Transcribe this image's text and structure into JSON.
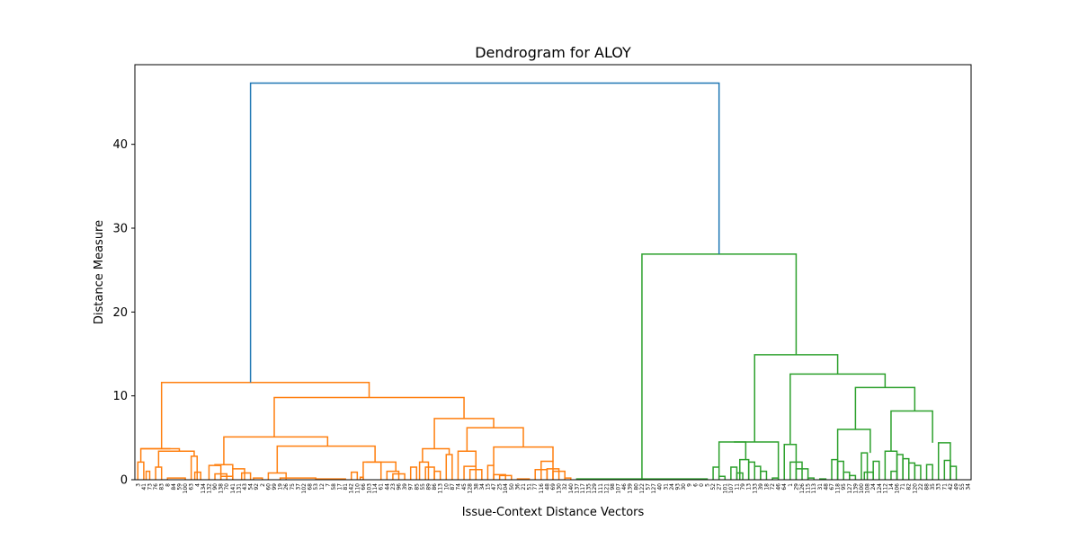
{
  "chart_data": {
    "type": "dendrogram",
    "title": "Dendrogram for ALOY",
    "xlabel": "Issue-Context Distance Vectors",
    "ylabel": "Distance Measure",
    "ylim": [
      0,
      49.5
    ],
    "yticks": [
      0,
      10,
      20,
      30,
      40
    ],
    "grid": false,
    "link_colors": {
      "root": "#1f77b4",
      "cluster_orange": "#ff7f0e",
      "cluster_green": "#2ca02c"
    },
    "leaf_labels": [
      "3",
      "41",
      "73",
      "76",
      "83",
      "8",
      "84",
      "59",
      "100",
      "63",
      "4",
      "134",
      "132",
      "90",
      "138",
      "70",
      "141",
      "131",
      "43",
      "54",
      "92",
      "2",
      "60",
      "99",
      "19",
      "26",
      "75",
      "37",
      "102",
      "68",
      "53",
      "12",
      "7",
      "58",
      "17",
      "81",
      "142",
      "110",
      "66",
      "103",
      "114",
      "61",
      "44",
      "23",
      "96",
      "39",
      "97",
      "85",
      "55",
      "89",
      "86",
      "113",
      "10",
      "87",
      "74",
      "45",
      "128",
      "38",
      "34",
      "15",
      "47",
      "25",
      "104",
      "50",
      "36",
      "21",
      "51",
      "77",
      "116",
      "48",
      "69",
      "130",
      "32",
      "140",
      "137",
      "117",
      "135",
      "129",
      "111",
      "121",
      "98",
      "107",
      "46",
      "139",
      "80",
      "122",
      "57",
      "127",
      "40",
      "31",
      "24",
      "93",
      "30",
      "9",
      "6",
      "0",
      "5",
      "52",
      "27",
      "101",
      "107",
      "11",
      "79",
      "13",
      "133",
      "39",
      "18",
      "72",
      "46",
      "64",
      "1",
      "29",
      "126",
      "115",
      "113",
      "31",
      "48",
      "67",
      "118",
      "95",
      "127",
      "139",
      "100",
      "108",
      "24",
      "124",
      "112",
      "14",
      "106",
      "71",
      "82",
      "120",
      "22",
      "88",
      "35",
      "33",
      "71",
      "42",
      "49",
      "55",
      "34"
    ],
    "merges": [
      {
        "cluster": "root",
        "height": 47.3
      },
      {
        "cluster": "orange",
        "height": 11.6
      },
      {
        "cluster": "green",
        "height": 26.9
      },
      {
        "cluster": "green",
        "height": 14.9
      },
      {
        "cluster": "green",
        "height": 12.6
      },
      {
        "cluster": "green",
        "height": 11.0
      },
      {
        "cluster": "orange",
        "height": 9.8
      },
      {
        "cluster": "green",
        "height": 8.2
      },
      {
        "cluster": "orange",
        "height": 7.3
      },
      {
        "cluster": "orange",
        "height": 6.2
      }
    ]
  }
}
